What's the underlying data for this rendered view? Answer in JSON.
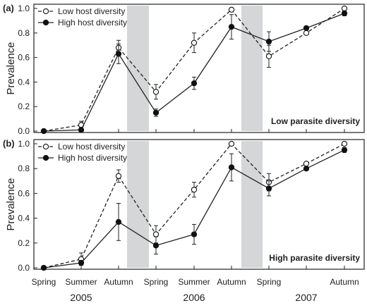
{
  "chart_data": [
    {
      "type": "line",
      "panel_label": "(a)",
      "annotation": "Low parasite diversity",
      "ylabel": "Prevalence",
      "ylim": [
        0,
        1.05
      ],
      "yticks": [
        "0.0",
        "0.2",
        "0.4",
        "0.6",
        "0.8",
        "1.0"
      ],
      "x_tick_labels": [
        "Spring",
        "Summer",
        "Autumn",
        "Spring",
        "Autumn",
        "Spring",
        "Autumn"
      ],
      "series": [
        {
          "name": "Low host diversity",
          "style": "dashed-open-circle",
          "x": [
            1,
            2,
            3,
            4,
            5,
            6,
            7,
            8,
            9
          ],
          "values": [
            0.0,
            0.05,
            0.68,
            0.32,
            0.72,
            0.99,
            0.61,
            0.8,
            1.0
          ],
          "errors": [
            0,
            0.03,
            0.06,
            0.06,
            0.08,
            0,
            0.09,
            0,
            0
          ]
        },
        {
          "name": "High host diversity",
          "style": "solid-filled-circle",
          "x": [
            1,
            2,
            3,
            4,
            5,
            6,
            7,
            8,
            9
          ],
          "values": [
            0.0,
            0.01,
            0.63,
            0.15,
            0.39,
            0.85,
            0.73,
            0.84,
            0.96
          ],
          "errors": [
            0,
            0.02,
            0.08,
            0.03,
            0.05,
            0.1,
            0.08,
            0,
            0.02
          ]
        }
      ],
      "shaded_bands": [
        [
          4.5,
          5.5
        ],
        [
          9.5,
          10.5
        ]
      ],
      "legend_position": "top-left"
    },
    {
      "type": "line",
      "panel_label": "(b)",
      "annotation": "High parasite diversity",
      "ylabel": "Prevalence",
      "ylim": [
        0,
        1.05
      ],
      "yticks": [
        "0.0",
        "0.2",
        "0.4",
        "0.6",
        "0.8",
        "1.0"
      ],
      "x_tick_labels": [
        "Spring",
        "Summer",
        "Autumn",
        "Spring",
        "Summer",
        "Autumn",
        "Spring",
        "Autumn"
      ],
      "year_labels": [
        "2005",
        "2006",
        "2007"
      ],
      "series": [
        {
          "name": "Low host diversity",
          "style": "dashed-open-circle",
          "x": [
            1,
            2,
            3,
            4,
            5,
            6,
            7,
            8,
            9
          ],
          "values": [
            0.0,
            0.07,
            0.74,
            0.27,
            0.63,
            1.0,
            0.69,
            0.84,
            1.0
          ],
          "errors": [
            0,
            0.05,
            0.05,
            0.07,
            0.06,
            0,
            0.07,
            0,
            0
          ]
        },
        {
          "name": "High host diversity",
          "style": "solid-filled-circle",
          "x": [
            1,
            2,
            3,
            4,
            5,
            6,
            7,
            8,
            9
          ],
          "values": [
            0.0,
            0.04,
            0.37,
            0.18,
            0.27,
            0.81,
            0.64,
            0.8,
            0.95
          ],
          "errors": [
            0,
            0.02,
            0.15,
            0.07,
            0.08,
            0.11,
            0.06,
            0,
            0.02
          ]
        }
      ],
      "shaded_bands": [
        [
          4.5,
          5.5
        ],
        [
          9.5,
          10.5
        ]
      ],
      "legend_position": "top-left"
    }
  ]
}
